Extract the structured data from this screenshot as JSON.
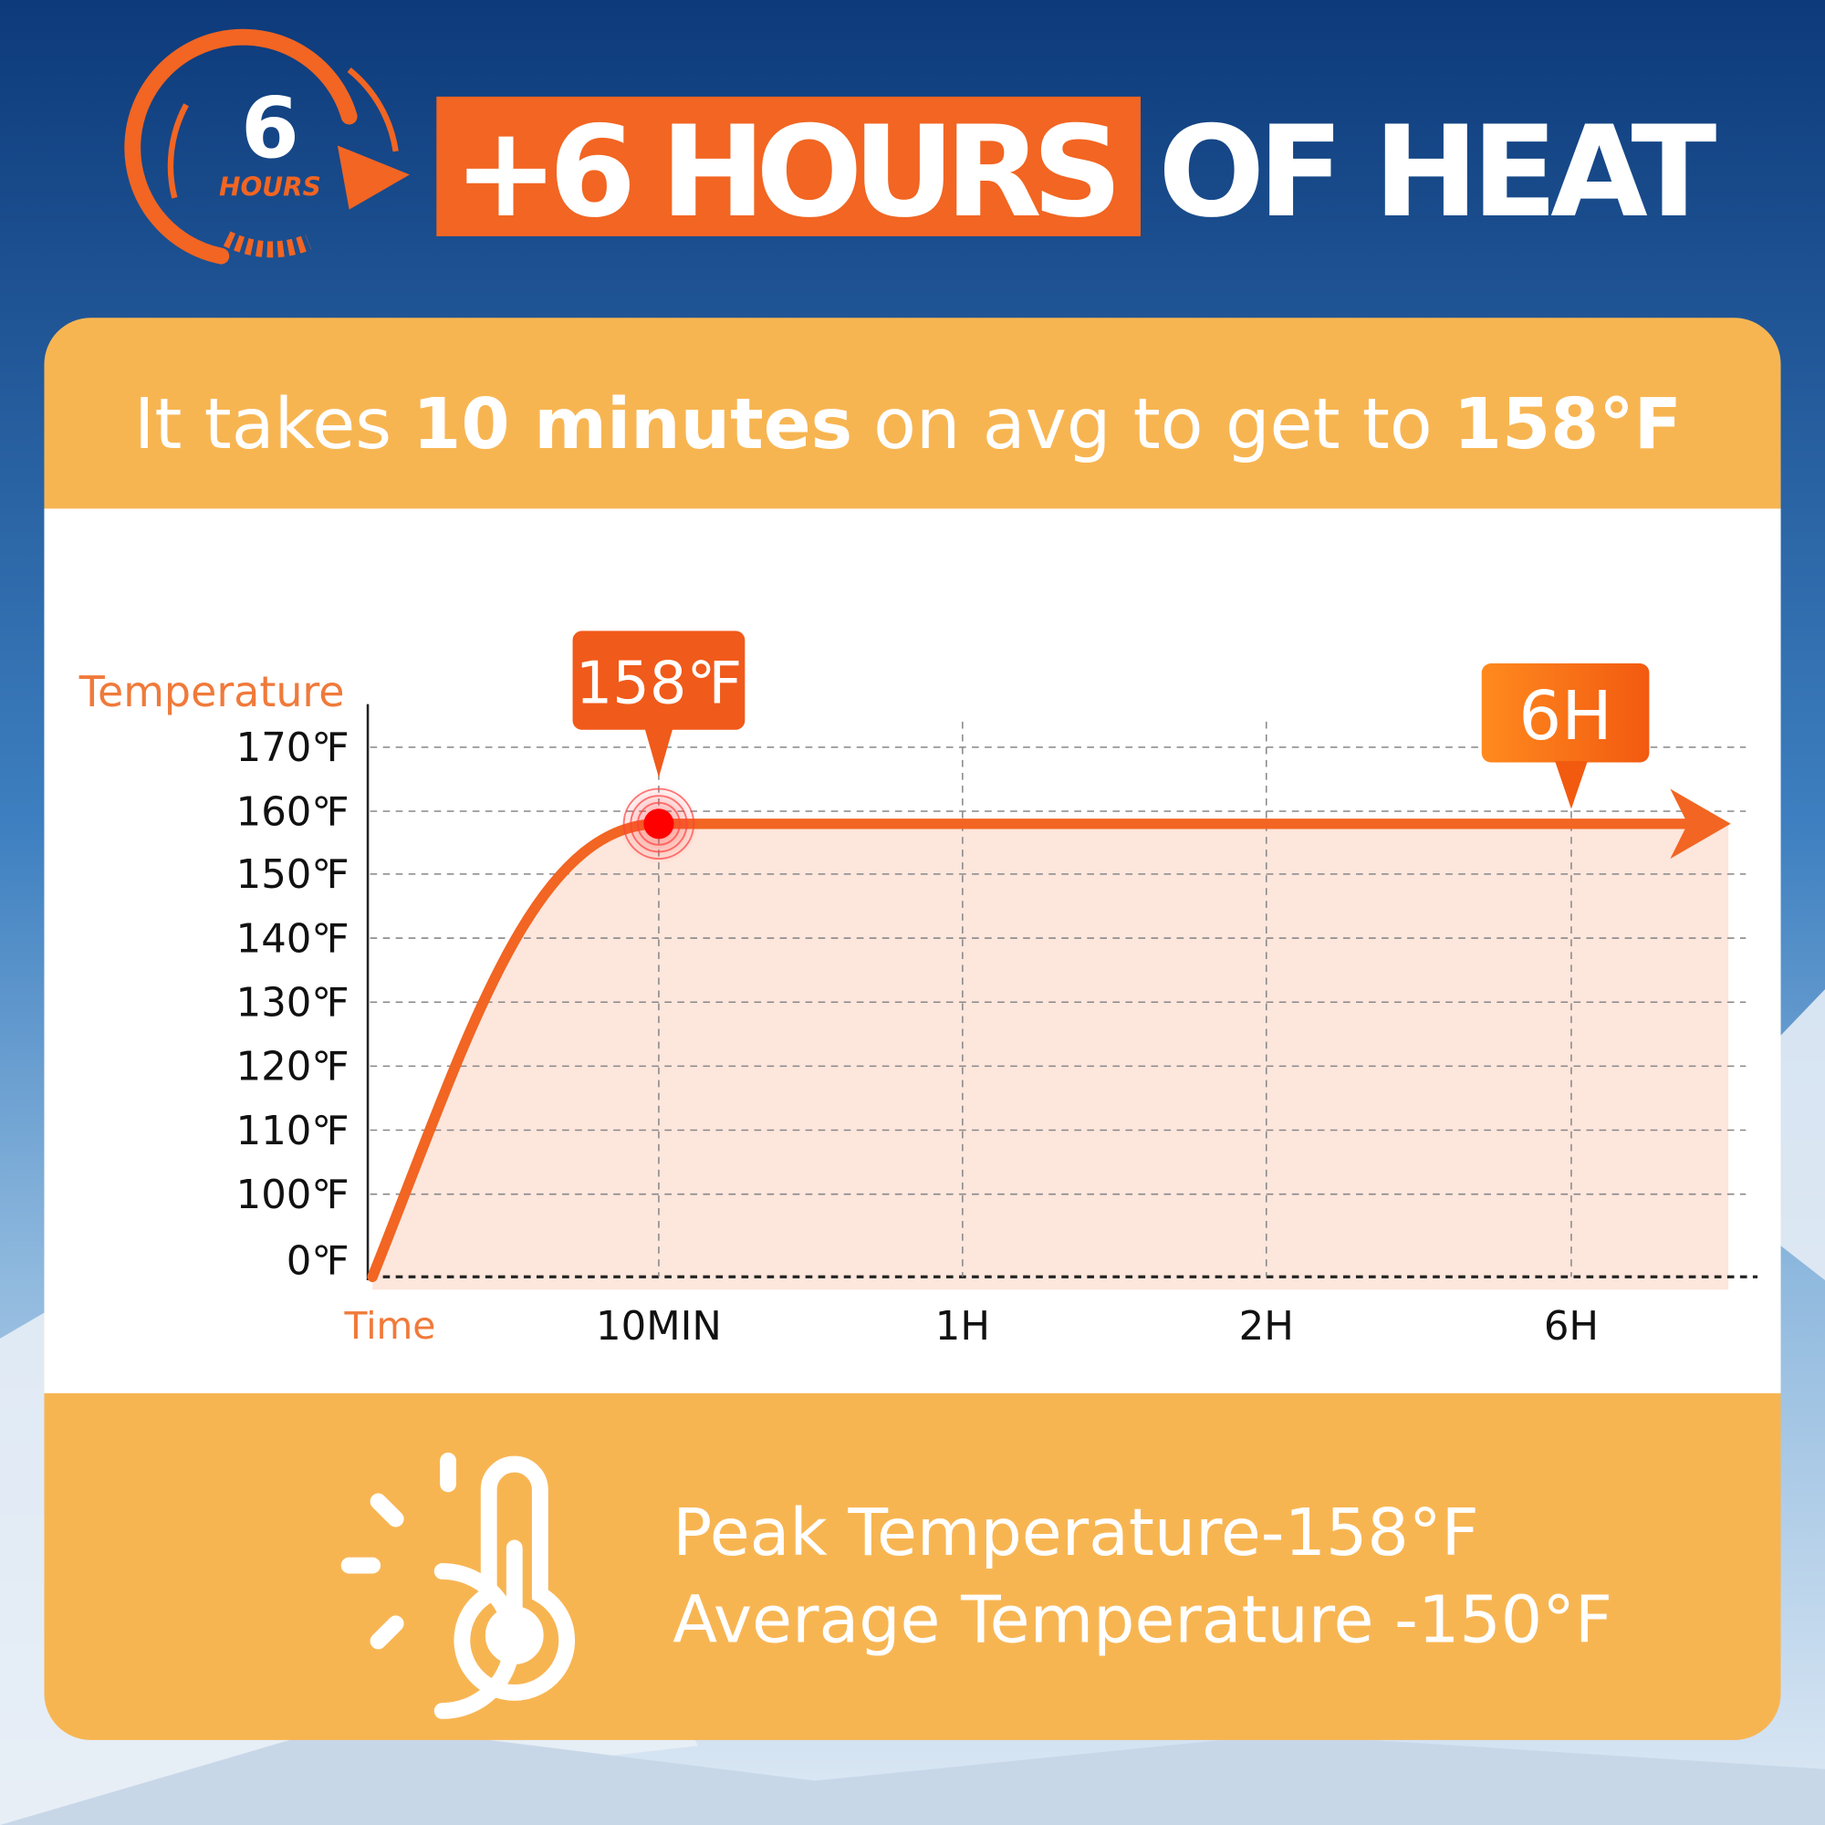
{
  "header": {
    "badge_number": "6",
    "badge_unit": "HOURS",
    "highlight": "+6 HOURS",
    "title_rest": "OF HEAT"
  },
  "panel": {
    "subtitle": [
      "It takes",
      "10 minutes",
      "on avg to get to",
      "158°F"
    ],
    "stats": [
      "Peak Temperature-158°F",
      "Average Temperature -150°F"
    ]
  },
  "chart_data": {
    "type": "line",
    "y_label": "Temperature",
    "x_label": "Time",
    "categories": [
      null,
      "10MIN",
      "1H",
      "2H",
      "6H"
    ],
    "series": [
      {
        "name": null,
        "color": "#f26522",
        "values": [
          0,
          158,
          158,
          158,
          158
        ]
      }
    ],
    "ylim": [
      0,
      170
    ],
    "yticks": [
      {
        "value": 0,
        "label": "0℉"
      },
      {
        "value": 100,
        "label": "100℉"
      },
      {
        "value": 110,
        "label": "110℉"
      },
      {
        "value": 120,
        "label": "120℉"
      },
      {
        "value": 130,
        "label": "130℉"
      },
      {
        "value": 140,
        "label": "140℉"
      },
      {
        "value": 150,
        "label": "150℉"
      },
      {
        "value": 160,
        "label": "160℉"
      },
      {
        "value": 170,
        "label": "170℉"
      }
    ],
    "grid": true,
    "annotations": [
      "158℉",
      "6H"
    ]
  }
}
